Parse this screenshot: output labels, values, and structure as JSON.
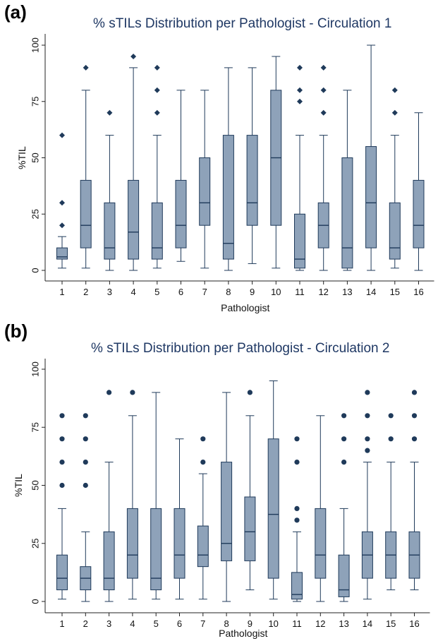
{
  "chart_data": [
    {
      "type": "box",
      "panel_label": "(a)",
      "title": "% sTILs Distribution per Pathologist - Circulation 1",
      "xlabel": "Pathologist",
      "ylabel": "%TIL",
      "ylim": [
        0,
        100
      ],
      "yticks": [
        0,
        25,
        50,
        75,
        100
      ],
      "outlier_marker": "diamond",
      "colors": {
        "box_fill": "#8ea2b9",
        "box_stroke": "#1f3a5a",
        "outlier": "#1f3a5a",
        "title": "#1f3864"
      },
      "categories": [
        "1",
        "2",
        "3",
        "4",
        "5",
        "6",
        "7",
        "8",
        "9",
        "10",
        "11",
        "12",
        "13",
        "14",
        "15",
        "16"
      ],
      "boxes": [
        {
          "min": 1,
          "q1": 5,
          "median": 6,
          "q3": 10,
          "max": 15,
          "outliers": [
            20,
            30,
            60
          ]
        },
        {
          "min": 1,
          "q1": 10,
          "median": 20,
          "q3": 40,
          "max": 80,
          "outliers": [
            90
          ]
        },
        {
          "min": 0,
          "q1": 5,
          "median": 10,
          "q3": 30,
          "max": 60,
          "outliers": [
            70
          ]
        },
        {
          "min": 0,
          "q1": 5,
          "median": 17,
          "q3": 40,
          "max": 90,
          "outliers": [
            95
          ]
        },
        {
          "min": 1,
          "q1": 5,
          "median": 10,
          "q3": 30,
          "max": 60,
          "outliers": [
            70,
            80,
            90
          ]
        },
        {
          "min": 4,
          "q1": 10,
          "median": 20,
          "q3": 40,
          "max": 80,
          "outliers": []
        },
        {
          "min": 1,
          "q1": 20,
          "median": 30,
          "q3": 50,
          "max": 80,
          "outliers": []
        },
        {
          "min": 0,
          "q1": 5,
          "median": 12,
          "q3": 60,
          "max": 90,
          "outliers": []
        },
        {
          "min": 3,
          "q1": 20,
          "median": 30,
          "q3": 60,
          "max": 90,
          "outliers": []
        },
        {
          "min": 1,
          "q1": 20,
          "median": 50,
          "q3": 80,
          "max": 95,
          "outliers": []
        },
        {
          "min": 0,
          "q1": 1,
          "median": 5,
          "q3": 25,
          "max": 60,
          "outliers": [
            75,
            80,
            90
          ]
        },
        {
          "min": 0,
          "q1": 10,
          "median": 20,
          "q3": 30,
          "max": 60,
          "outliers": [
            70,
            80,
            90
          ]
        },
        {
          "min": 0,
          "q1": 1,
          "median": 10,
          "q3": 50,
          "max": 80,
          "outliers": []
        },
        {
          "min": 0,
          "q1": 10,
          "median": 30,
          "q3": 55,
          "max": 100,
          "outliers": []
        },
        {
          "min": 1,
          "q1": 5,
          "median": 10,
          "q3": 30,
          "max": 60,
          "outliers": [
            70,
            80
          ]
        },
        {
          "min": 0,
          "q1": 10,
          "median": 20,
          "q3": 40,
          "max": 70,
          "outliers": []
        }
      ]
    },
    {
      "type": "box",
      "panel_label": "(b)",
      "title": "% sTILs Distribution per Pathologist - Circulation 2",
      "xlabel": "Pathologist",
      "ylabel": "%TIL",
      "ylim": [
        0,
        100
      ],
      "yticks": [
        0,
        25,
        50,
        75,
        100
      ],
      "outlier_marker": "circle",
      "colors": {
        "box_fill": "#8ea2b9",
        "box_stroke": "#1f3a5a",
        "outlier": "#1f3a5a",
        "title": "#1f3864"
      },
      "categories": [
        "1",
        "2",
        "3",
        "4",
        "5",
        "6",
        "7",
        "8",
        "9",
        "10",
        "11",
        "12",
        "13",
        "14",
        "15",
        "16"
      ],
      "boxes": [
        {
          "min": 1,
          "q1": 5,
          "median": 10,
          "q3": 20,
          "max": 40,
          "outliers": [
            50,
            60,
            70,
            80
          ]
        },
        {
          "min": 0,
          "q1": 5,
          "median": 10,
          "q3": 15,
          "max": 30,
          "outliers": [
            50,
            60,
            70,
            80
          ]
        },
        {
          "min": 0,
          "q1": 5,
          "median": 10,
          "q3": 30,
          "max": 60,
          "outliers": [
            90
          ]
        },
        {
          "min": 1,
          "q1": 10,
          "median": 20,
          "q3": 40,
          "max": 80,
          "outliers": [
            90
          ]
        },
        {
          "min": 1,
          "q1": 5,
          "median": 10,
          "q3": 40,
          "max": 90,
          "outliers": []
        },
        {
          "min": 1,
          "q1": 10,
          "median": 20,
          "q3": 40,
          "max": 70,
          "outliers": []
        },
        {
          "min": 1,
          "q1": 15,
          "median": 20,
          "q3": 32.5,
          "max": 55,
          "outliers": [
            60,
            70
          ]
        },
        {
          "min": 0,
          "q1": 17.5,
          "median": 25,
          "q3": 60,
          "max": 90,
          "outliers": []
        },
        {
          "min": 5,
          "q1": 17.5,
          "median": 30,
          "q3": 45,
          "max": 80,
          "outliers": [
            90
          ]
        },
        {
          "min": 1,
          "q1": 10,
          "median": 37.5,
          "q3": 70,
          "max": 95,
          "outliers": []
        },
        {
          "min": 0,
          "q1": 1,
          "median": 3,
          "q3": 12.5,
          "max": 30,
          "outliers": [
            35,
            40,
            60,
            70
          ]
        },
        {
          "min": 0,
          "q1": 10,
          "median": 20,
          "q3": 40,
          "max": 80,
          "outliers": []
        },
        {
          "min": 0,
          "q1": 2,
          "median": 5,
          "q3": 20,
          "max": 40,
          "outliers": [
            60,
            70,
            80
          ]
        },
        {
          "min": 1,
          "q1": 10,
          "median": 20,
          "q3": 30,
          "max": 60,
          "outliers": [
            65,
            70,
            80,
            90
          ]
        },
        {
          "min": 5,
          "q1": 10,
          "median": 20,
          "q3": 30,
          "max": 60,
          "outliers": [
            70,
            80
          ]
        },
        {
          "min": 5,
          "q1": 10,
          "median": 20,
          "q3": 30,
          "max": 60,
          "outliers": [
            70,
            80,
            90
          ]
        }
      ]
    }
  ]
}
